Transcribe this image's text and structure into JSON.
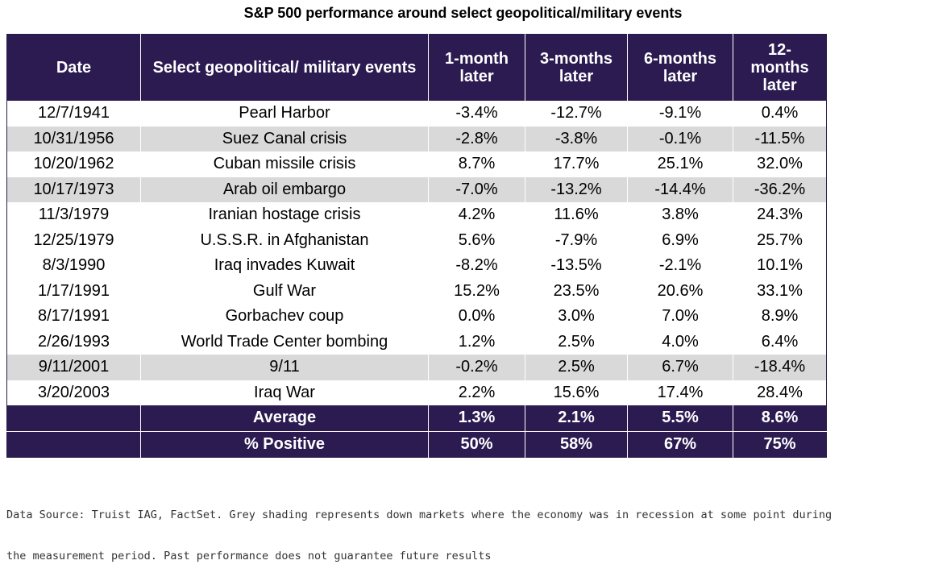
{
  "title": "S&P 500 performance around select geopolitical/military events",
  "colors": {
    "header_bg": "#2b1b51",
    "header_text": "#ffffff",
    "shade": "#d9d9d9"
  },
  "columns": [
    "Date",
    "Select geopolitical/ military events",
    "1-month later",
    "3-months later",
    "6-months later",
    "12- months later"
  ],
  "rows": [
    {
      "date": "12/7/1941",
      "event": "Pearl Harbor",
      "m1": "-3.4%",
      "m3": "-12.7%",
      "m6": "-9.1%",
      "m12": "0.4%",
      "shaded": false
    },
    {
      "date": "10/31/1956",
      "event": "Suez Canal crisis",
      "m1": "-2.8%",
      "m3": "-3.8%",
      "m6": "-0.1%",
      "m12": "-11.5%",
      "shaded": true
    },
    {
      "date": "10/20/1962",
      "event": "Cuban missile crisis",
      "m1": "8.7%",
      "m3": "17.7%",
      "m6": "25.1%",
      "m12": "32.0%",
      "shaded": false
    },
    {
      "date": "10/17/1973",
      "event": "Arab oil embargo",
      "m1": "-7.0%",
      "m3": "-13.2%",
      "m6": "-14.4%",
      "m12": "-36.2%",
      "shaded": true
    },
    {
      "date": "11/3/1979",
      "event": "Iranian hostage crisis",
      "m1": "4.2%",
      "m3": "11.6%",
      "m6": "3.8%",
      "m12": "24.3%",
      "shaded": false
    },
    {
      "date": "12/25/1979",
      "event": "U.S.S.R. in Afghanistan",
      "m1": "5.6%",
      "m3": "-7.9%",
      "m6": "6.9%",
      "m12": "25.7%",
      "shaded": false
    },
    {
      "date": "8/3/1990",
      "event": "Iraq invades Kuwait",
      "m1": "-8.2%",
      "m3": "-13.5%",
      "m6": "-2.1%",
      "m12": "10.1%",
      "shaded": false
    },
    {
      "date": "1/17/1991",
      "event": "Gulf War",
      "m1": "15.2%",
      "m3": "23.5%",
      "m6": "20.6%",
      "m12": "33.1%",
      "shaded": false
    },
    {
      "date": "8/17/1991",
      "event": "Gorbachev coup",
      "m1": "0.0%",
      "m3": "3.0%",
      "m6": "7.0%",
      "m12": "8.9%",
      "shaded": false
    },
    {
      "date": "2/26/1993",
      "event": "World Trade Center bombing",
      "m1": "1.2%",
      "m3": "2.5%",
      "m6": "4.0%",
      "m12": "6.4%",
      "shaded": false
    },
    {
      "date": "9/11/2001",
      "event": "9/11",
      "m1": "-0.2%",
      "m3": "2.5%",
      "m6": "6.7%",
      "m12": "-18.4%",
      "shaded": true
    },
    {
      "date": "3/20/2003",
      "event": "Iraq War",
      "m1": "2.2%",
      "m3": "15.6%",
      "m6": "17.4%",
      "m12": "28.4%",
      "shaded": false
    }
  ],
  "summary": [
    {
      "label": "Average",
      "m1": "1.3%",
      "m3": "2.1%",
      "m6": "5.5%",
      "m12": "8.6%"
    },
    {
      "label": "% Positive",
      "m1": "50%",
      "m3": "58%",
      "m6": "67%",
      "m12": "75%"
    }
  ],
  "source_note": [
    "Data Source: Truist IAG, FactSet. Grey shading represents down markets where the economy was in recession at some point during",
    "the measurement period. Past performance does not guarantee future results"
  ]
}
